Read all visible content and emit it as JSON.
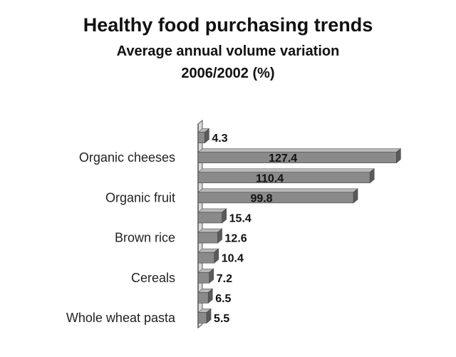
{
  "chart_data": {
    "type": "bar",
    "orientation": "horizontal",
    "title": "Healthy food purchasing trends",
    "subtitle_lines": [
      "Average annual volume variation",
      "2006/2002 (%)"
    ],
    "categories": [
      "",
      "Organic cheeses",
      "",
      "Organic fruit",
      "",
      "Brown rice",
      "",
      "Cereals",
      "",
      "Whole wheat pasta"
    ],
    "values": [
      4.3,
      127.4,
      110.4,
      99.8,
      15.4,
      12.6,
      10.4,
      7.2,
      6.5,
      5.5
    ],
    "value_labels": [
      "4.3",
      "127.4",
      "110.4",
      "99.8",
      "15.4",
      "12.6",
      "10.4",
      "7.2",
      "6.5",
      "5.5"
    ],
    "xlim": [
      0,
      130
    ],
    "grid": false,
    "legend": "none",
    "colors": {
      "bar_front": "#8a8a8a",
      "bar_top": "#b9b9b9",
      "bar_side": "#5a5a5a",
      "axis_wall": "#d9d9d9",
      "axis_line": "#555555",
      "text": "#111111"
    }
  }
}
